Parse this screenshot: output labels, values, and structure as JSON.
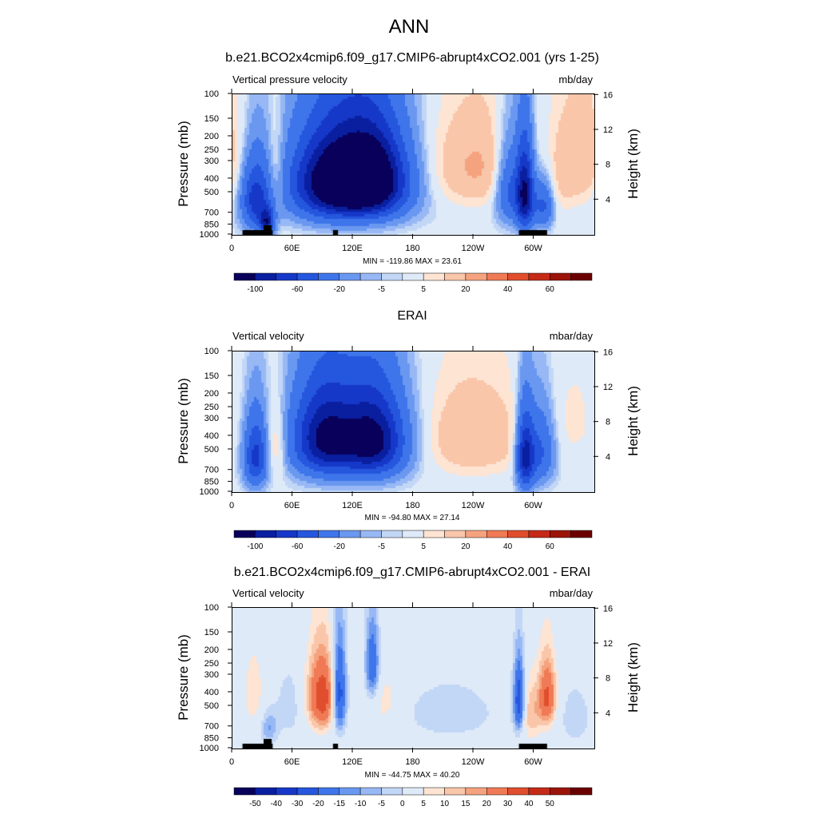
{
  "figure": {
    "title": "ANN"
  },
  "chart_data": [
    {
      "type": "heatmap",
      "panel_title": "b.e21.BCO2x4cmip6.f09_g17.CMIP6-abrupt4xCO2.001 (yrs 1-25)",
      "left_label": "Vertical pressure velocity",
      "right_label": "mb/day",
      "xlabel": "",
      "ylabel": "Pressure (mb)",
      "y2label": "Height (km)",
      "x_ticks": [
        "0",
        "60E",
        "120E",
        "180",
        "120W",
        "60W"
      ],
      "x_tick_values": [
        0,
        60,
        120,
        180,
        240,
        300
      ],
      "xlim": [
        0,
        360
      ],
      "y_ticks": [
        "100",
        "150",
        "200",
        "250",
        "300",
        "400",
        "500",
        "700",
        "850",
        "1000"
      ],
      "y_tick_values": [
        100,
        150,
        200,
        250,
        300,
        400,
        500,
        700,
        850,
        1000
      ],
      "ylim": [
        1000,
        100
      ],
      "y2_ticks": [
        "16",
        "12",
        "8",
        "4"
      ],
      "y2_tick_values": [
        16,
        12,
        8,
        4
      ],
      "stats": "MIN = -119.86  MAX =  23.61",
      "colorbar": {
        "levels": [
          -100,
          -80,
          -60,
          -40,
          -20,
          -10,
          -5,
          -2,
          2,
          5,
          10,
          20,
          30,
          40,
          50,
          60,
          80
        ],
        "labels": [
          "-100",
          "-60",
          "-20",
          "-5",
          "5",
          "20",
          "40",
          "60"
        ]
      },
      "topography": [
        [
          10,
          40
        ],
        [
          31,
          39
        ],
        [
          100,
          105
        ],
        [
          285,
          313
        ]
      ],
      "features": [
        {
          "lon": 22,
          "lev": 550,
          "amp": -70,
          "w": 10,
          "h": 450
        },
        {
          "lon": 33,
          "lev": 800,
          "amp": -80,
          "w": 5,
          "h": 250
        },
        {
          "lon": 42,
          "lev": 350,
          "amp": 18,
          "w": 6,
          "h": 350
        },
        {
          "lon": 100,
          "lev": 420,
          "amp": -95,
          "w": 28,
          "h": 420
        },
        {
          "lon": 140,
          "lev": 400,
          "amp": -85,
          "w": 22,
          "h": 400
        },
        {
          "lon": 120,
          "lev": 400,
          "amp": -55,
          "w": 40,
          "h": 480
        },
        {
          "lon": 240,
          "lev": 320,
          "amp": 22,
          "w": 38,
          "h": 380
        },
        {
          "lon": 290,
          "lev": 500,
          "amp": -100,
          "w": 6,
          "h": 500
        },
        {
          "lon": 275,
          "lev": 450,
          "amp": -50,
          "w": 10,
          "h": 450
        },
        {
          "lon": 308,
          "lev": 600,
          "amp": -45,
          "w": 7,
          "h": 350
        },
        {
          "lon": 348,
          "lev": 280,
          "amp": 18,
          "w": 16,
          "h": 400
        },
        {
          "lon": 325,
          "lev": 400,
          "amp": 8,
          "w": 10,
          "h": 450
        }
      ]
    },
    {
      "type": "heatmap",
      "panel_title": "ERAI",
      "left_label": "Vertical velocity",
      "right_label": "mbar/day",
      "xlabel": "",
      "ylabel": "Pressure (mb)",
      "y2label": "Height (km)",
      "x_ticks": [
        "0",
        "60E",
        "120E",
        "180",
        "120W",
        "60W"
      ],
      "x_tick_values": [
        0,
        60,
        120,
        180,
        240,
        300
      ],
      "xlim": [
        0,
        360
      ],
      "y_ticks": [
        "100",
        "150",
        "200",
        "250",
        "300",
        "400",
        "500",
        "700",
        "850",
        "1000"
      ],
      "y_tick_values": [
        100,
        150,
        200,
        250,
        300,
        400,
        500,
        700,
        850,
        1000
      ],
      "ylim": [
        1000,
        100
      ],
      "y2_ticks": [
        "16",
        "12",
        "8",
        "4"
      ],
      "y2_tick_values": [
        16,
        12,
        8,
        4
      ],
      "stats": "MIN = -94.80  MAX =  27.14",
      "colorbar": {
        "levels": [
          -100,
          -80,
          -60,
          -40,
          -20,
          -10,
          -5,
          -2,
          2,
          5,
          10,
          20,
          30,
          40,
          50,
          60,
          80
        ],
        "labels": [
          "-100",
          "-60",
          "-20",
          "-5",
          "5",
          "20",
          "40",
          "60"
        ]
      },
      "topography": [],
      "features": [
        {
          "lon": 22,
          "lev": 550,
          "amp": -65,
          "w": 8,
          "h": 450
        },
        {
          "lon": 42,
          "lev": 450,
          "amp": 22,
          "w": 8,
          "h": 400
        },
        {
          "lon": 90,
          "lev": 400,
          "amp": -70,
          "w": 20,
          "h": 420
        },
        {
          "lon": 140,
          "lev": 420,
          "amp": -75,
          "w": 20,
          "h": 420
        },
        {
          "lon": 115,
          "lev": 420,
          "amp": -50,
          "w": 40,
          "h": 480
        },
        {
          "lon": 235,
          "lev": 400,
          "amp": 20,
          "w": 40,
          "h": 450
        },
        {
          "lon": 290,
          "lev": 550,
          "amp": -85,
          "w": 6,
          "h": 480
        },
        {
          "lon": 305,
          "lev": 500,
          "amp": -45,
          "w": 10,
          "h": 450
        },
        {
          "lon": 340,
          "lev": 300,
          "amp": 6,
          "w": 18,
          "h": 400
        }
      ]
    },
    {
      "type": "heatmap",
      "panel_title": "b.e21.BCO2x4cmip6.f09_g17.CMIP6-abrupt4xCO2.001 - ERAI",
      "left_label": "Vertical velocity",
      "right_label": "mbar/day",
      "xlabel": "",
      "ylabel": "Pressure (mb)",
      "y2label": "Height (km)",
      "x_ticks": [
        "0",
        "60E",
        "120E",
        "180",
        "120W",
        "60W"
      ],
      "x_tick_values": [
        0,
        60,
        120,
        180,
        240,
        300
      ],
      "xlim": [
        0,
        360
      ],
      "y_ticks": [
        "100",
        "150",
        "200",
        "250",
        "300",
        "400",
        "500",
        "700",
        "850",
        "1000"
      ],
      "y_tick_values": [
        100,
        150,
        200,
        250,
        300,
        400,
        500,
        700,
        850,
        1000
      ],
      "ylim": [
        1000,
        100
      ],
      "y2_ticks": [
        "16",
        "12",
        "8",
        "4"
      ],
      "y2_tick_values": [
        16,
        12,
        8,
        4
      ],
      "stats": "MIN = -44.75  MAX =  40.20",
      "colorbar": {
        "levels": [
          -60,
          -50,
          -40,
          -30,
          -20,
          -15,
          -10,
          -5,
          0,
          5,
          10,
          15,
          20,
          30,
          40,
          50,
          60
        ],
        "labels": [
          "-50",
          "-40",
          "-30",
          "-20",
          "-15",
          "-10",
          "-5",
          "0",
          "5",
          "10",
          "15",
          "20",
          "30",
          "40",
          "50"
        ]
      },
      "topography": [
        [
          10,
          40
        ],
        [
          31,
          39
        ],
        [
          100,
          105
        ],
        [
          285,
          313
        ]
      ],
      "features": [
        {
          "lon": 88,
          "lev": 420,
          "amp": 38,
          "w": 10,
          "h": 380
        },
        {
          "lon": 105,
          "lev": 400,
          "amp": -40,
          "w": 5,
          "h": 450
        },
        {
          "lon": 138,
          "lev": 250,
          "amp": -30,
          "w": 5,
          "h": 250
        },
        {
          "lon": 150,
          "lev": 450,
          "amp": 8,
          "w": 12,
          "h": 350
        },
        {
          "lon": 20,
          "lev": 400,
          "amp": 8,
          "w": 8,
          "h": 400
        },
        {
          "lon": 35,
          "lev": 700,
          "amp": -15,
          "w": 6,
          "h": 300
        },
        {
          "lon": 55,
          "lev": 500,
          "amp": -8,
          "w": 10,
          "h": 450
        },
        {
          "lon": 215,
          "lev": 550,
          "amp": -9,
          "w": 35,
          "h": 400
        },
        {
          "lon": 284,
          "lev": 450,
          "amp": -40,
          "w": 4,
          "h": 400
        },
        {
          "lon": 312,
          "lev": 420,
          "amp": 32,
          "w": 6,
          "h": 330
        },
        {
          "lon": 295,
          "lev": 550,
          "amp": 15,
          "w": 8,
          "h": 400
        },
        {
          "lon": 340,
          "lev": 600,
          "amp": -10,
          "w": 10,
          "h": 400
        }
      ]
    }
  ]
}
